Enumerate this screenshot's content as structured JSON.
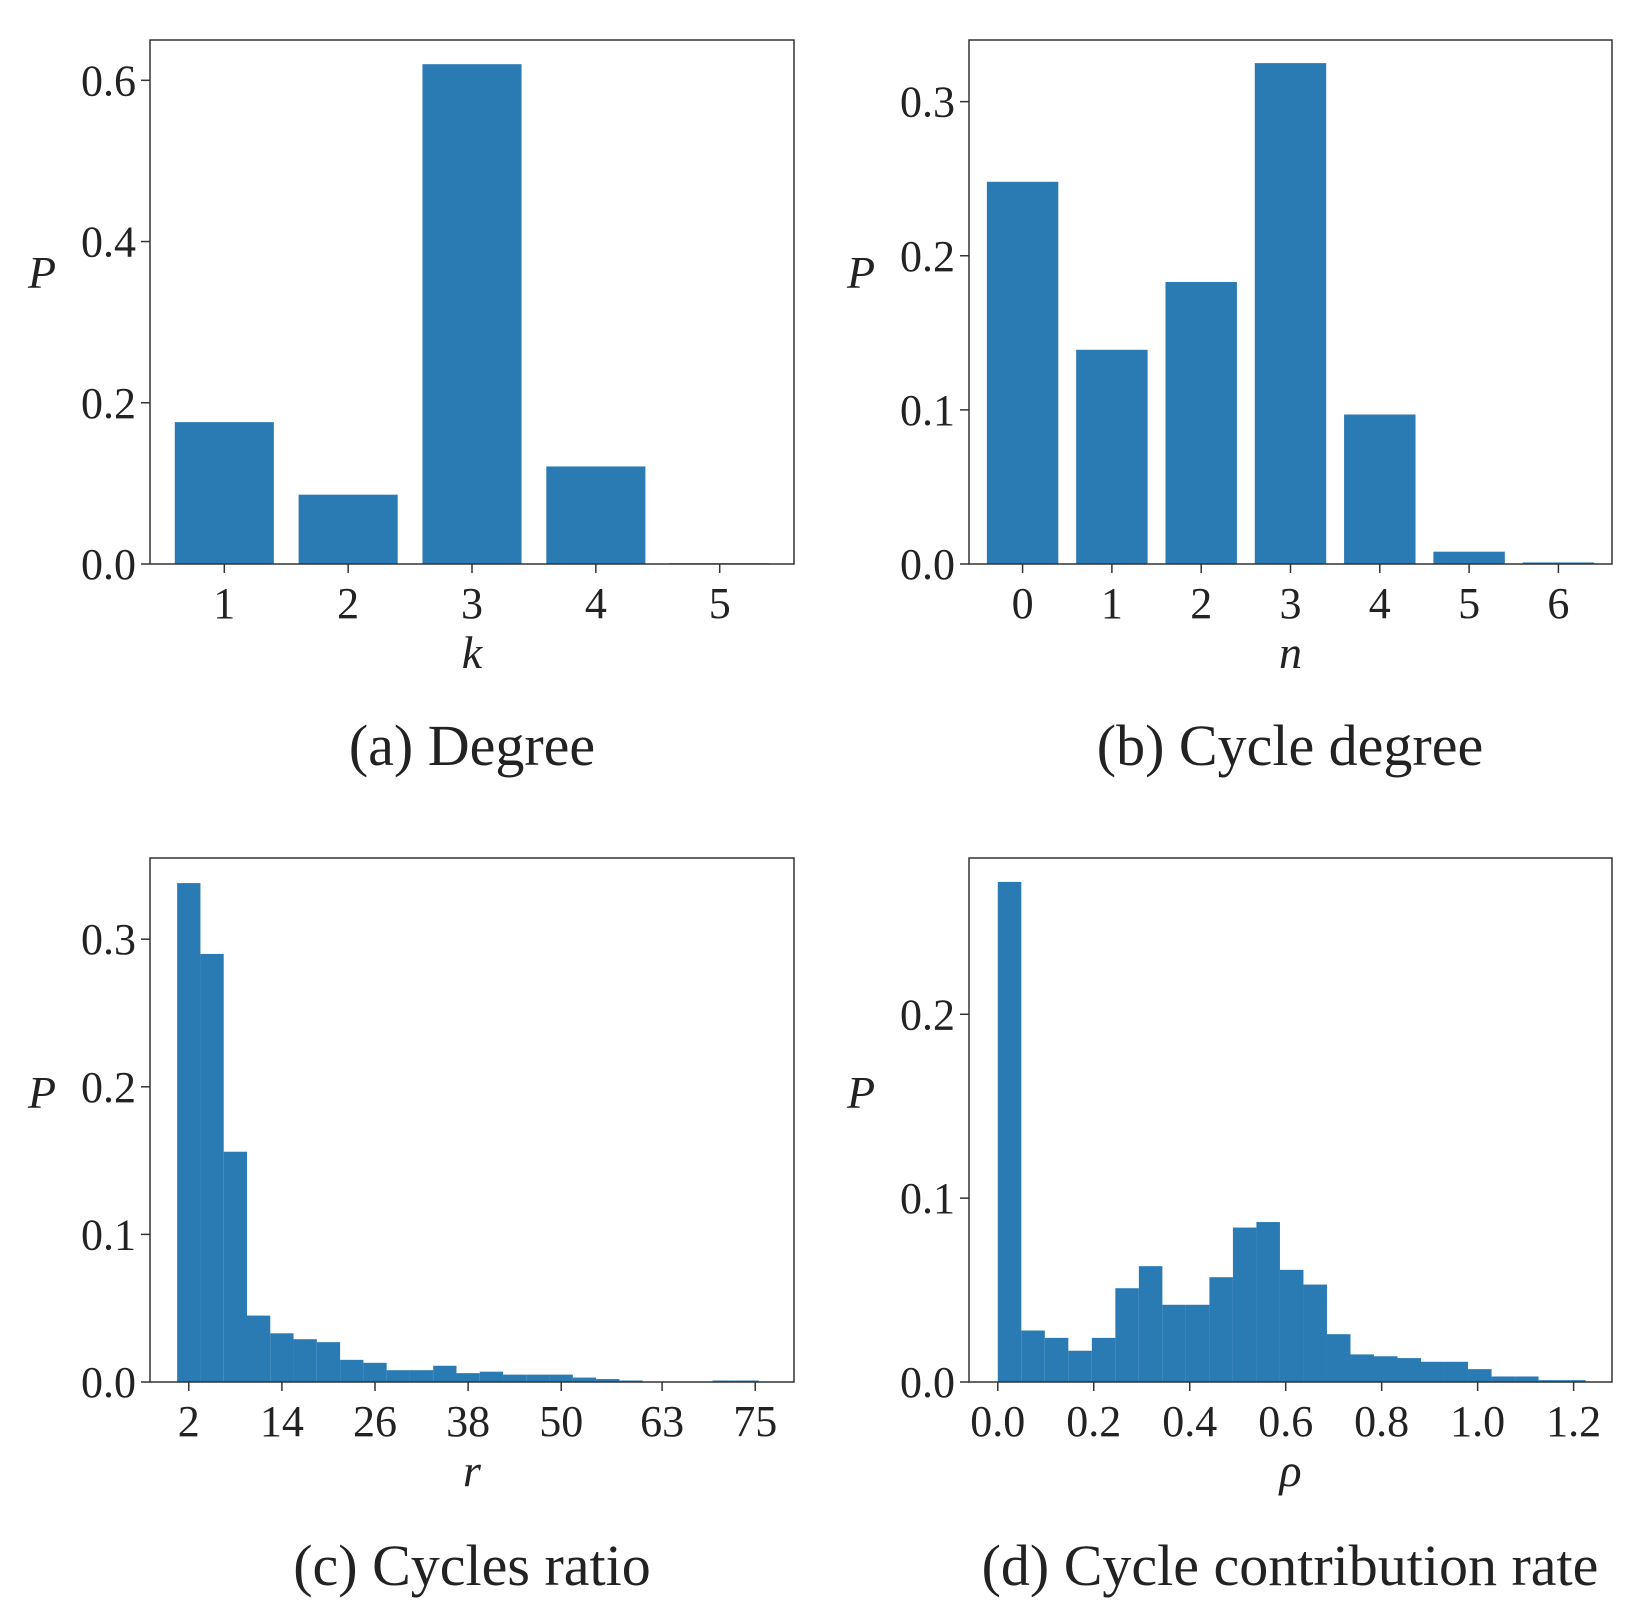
{
  "chart_data": [
    {
      "type": "bar",
      "title": "(a) Degree",
      "xlabel": "k",
      "ylabel": "P",
      "categories": [
        "1",
        "2",
        "3",
        "4",
        "5"
      ],
      "values": [
        0.176,
        0.086,
        0.62,
        0.121,
        0.001
      ],
      "ylim": [
        0,
        0.65
      ],
      "yticks": [
        0.0,
        0.2,
        0.4,
        0.6
      ],
      "ytick_labels": [
        "0.0",
        "0.2",
        "0.4",
        "0.6"
      ],
      "grid": false,
      "color": "#2a7ab4"
    },
    {
      "type": "bar",
      "title": "(b) Cycle degree",
      "xlabel": "n",
      "ylabel": "P",
      "categories": [
        "0",
        "1",
        "2",
        "3",
        "4",
        "5",
        "6"
      ],
      "values": [
        0.248,
        0.139,
        0.183,
        0.325,
        0.097,
        0.008,
        0.001
      ],
      "ylim": [
        0,
        0.34
      ],
      "yticks": [
        0.0,
        0.1,
        0.2,
        0.3
      ],
      "ytick_labels": [
        "0.0",
        "0.1",
        "0.2",
        "0.3"
      ],
      "grid": false,
      "color": "#2a7ab4"
    },
    {
      "type": "bar",
      "title": "(c) Cycles ratio",
      "xlabel": "r",
      "ylabel": "P",
      "histogram": true,
      "x_start": 0.5,
      "bin_width": 3.0,
      "values": [
        0.338,
        0.29,
        0.156,
        0.045,
        0.033,
        0.029,
        0.027,
        0.015,
        0.013,
        0.008,
        0.008,
        0.011,
        0.006,
        0.007,
        0.005,
        0.005,
        0.005,
        0.003,
        0.002,
        0.001,
        0.0,
        0.0,
        0.0,
        0.001,
        0.001
      ],
      "xlim": [
        -3.0,
        80.0
      ],
      "xticks": [
        2,
        14,
        26,
        38,
        50,
        63,
        75
      ],
      "xtick_labels": [
        "2",
        "14",
        "26",
        "38",
        "50",
        "63",
        "75"
      ],
      "ylim": [
        0,
        0.355
      ],
      "yticks": [
        0.0,
        0.1,
        0.2,
        0.3
      ],
      "ytick_labels": [
        "0.0",
        "0.1",
        "0.2",
        "0.3"
      ],
      "grid": false,
      "color": "#2a7ab4"
    },
    {
      "type": "bar",
      "title": "(d) Cycle contribution rate",
      "xlabel": "ρ",
      "ylabel": "P",
      "histogram": true,
      "x_start": 0.0,
      "bin_width": 0.049,
      "values": [
        0.272,
        0.028,
        0.024,
        0.017,
        0.024,
        0.051,
        0.063,
        0.042,
        0.042,
        0.057,
        0.084,
        0.087,
        0.061,
        0.053,
        0.026,
        0.015,
        0.014,
        0.013,
        0.011,
        0.011,
        0.007,
        0.003,
        0.003,
        0.001,
        0.001
      ],
      "xlim": [
        -0.06,
        1.28
      ],
      "xticks": [
        0.0,
        0.2,
        0.4,
        0.6,
        0.8,
        1.0,
        1.2
      ],
      "xtick_labels": [
        "0.0",
        "0.2",
        "0.4",
        "0.6",
        "0.8",
        "1.0",
        "1.2"
      ],
      "ylim": [
        0,
        0.285
      ],
      "yticks": [
        0.0,
        0.1,
        0.2
      ],
      "ytick_labels": [
        "0.0",
        "0.1",
        "0.2"
      ],
      "grid": false,
      "color": "#2a7ab4"
    }
  ]
}
